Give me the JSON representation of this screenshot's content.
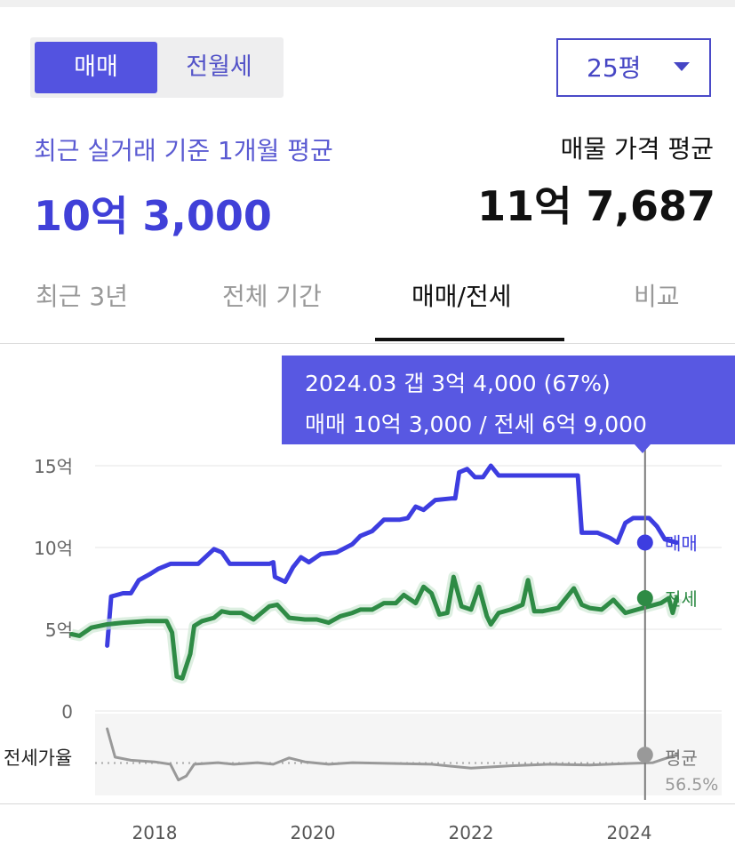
{
  "colors": {
    "accent": "#4a4adf",
    "sale": "#3d3de0",
    "jeonse": "#2e8b45",
    "ratio": "#999999"
  },
  "toggle": {
    "active": "매매",
    "inactive": "전월세"
  },
  "area_select": {
    "value": "25평",
    "icon": "caret-down-icon"
  },
  "recent": {
    "label": "최근 실거래 기준 1개월 평균",
    "value": "10억 3,000"
  },
  "listing": {
    "label": "매물 가격 평균",
    "value": "11억 7,687"
  },
  "tabs": [
    {
      "label": "최근 3년"
    },
    {
      "label": "전체 기간"
    },
    {
      "label": "매매/전세",
      "active": true
    },
    {
      "label": "비교"
    }
  ],
  "tooltip": {
    "line1": "2024.03  갭 3억 4,000 (67%)",
    "line2": "매매 10억 3,000 / 전세 6억 9,000"
  },
  "chart_data": {
    "type": "line",
    "x_ticks": [
      "2018",
      "2020",
      "2022",
      "2024"
    ],
    "y_ticks": [
      "0",
      "5억",
      "10억",
      "15억"
    ],
    "ylim": [
      0,
      15
    ],
    "y_unit": "억",
    "grid": true,
    "marker_x": 2024.2,
    "series": [
      {
        "name": "매매",
        "color": "#3d3de0",
        "points": [
          [
            2017.4,
            4.0
          ],
          [
            2017.45,
            7.0
          ],
          [
            2017.6,
            7.2
          ],
          [
            2017.7,
            7.2
          ],
          [
            2017.8,
            8.0
          ],
          [
            2017.95,
            8.4
          ],
          [
            2018.05,
            8.7
          ],
          [
            2018.2,
            9.0
          ],
          [
            2018.4,
            9.0
          ],
          [
            2018.55,
            9.0
          ],
          [
            2018.75,
            9.9
          ],
          [
            2018.85,
            9.7
          ],
          [
            2018.95,
            9.0
          ],
          [
            2019.2,
            9.0
          ],
          [
            2019.45,
            9.0
          ],
          [
            2019.5,
            9.1
          ],
          [
            2019.52,
            8.2
          ],
          [
            2019.65,
            7.9
          ],
          [
            2019.75,
            8.8
          ],
          [
            2019.85,
            9.4
          ],
          [
            2019.95,
            9.1
          ],
          [
            2020.1,
            9.6
          ],
          [
            2020.3,
            9.7
          ],
          [
            2020.5,
            10.2
          ],
          [
            2020.6,
            10.7
          ],
          [
            2020.75,
            11.0
          ],
          [
            2020.9,
            11.7
          ],
          [
            2021.1,
            11.7
          ],
          [
            2021.2,
            11.8
          ],
          [
            2021.3,
            12.5
          ],
          [
            2021.4,
            12.3
          ],
          [
            2021.55,
            12.9
          ],
          [
            2021.75,
            13.0
          ],
          [
            2021.8,
            13.0
          ],
          [
            2021.85,
            14.6
          ],
          [
            2021.95,
            14.8
          ],
          [
            2022.05,
            14.3
          ],
          [
            2022.15,
            14.3
          ],
          [
            2022.25,
            15.0
          ],
          [
            2022.35,
            14.4
          ],
          [
            2022.5,
            14.4
          ],
          [
            2023.0,
            14.4
          ],
          [
            2023.2,
            14.4
          ],
          [
            2023.35,
            14.4
          ],
          [
            2023.4,
            10.9
          ],
          [
            2023.6,
            10.9
          ],
          [
            2023.75,
            10.6
          ],
          [
            2023.85,
            10.3
          ],
          [
            2023.95,
            11.5
          ],
          [
            2024.05,
            11.8
          ],
          [
            2024.25,
            11.8
          ],
          [
            2024.35,
            11.3
          ],
          [
            2024.45,
            10.5
          ],
          [
            2024.6,
            10.3
          ]
        ]
      },
      {
        "name": "전세",
        "color": "#2e8b45",
        "points": [
          [
            2016.95,
            4.7
          ],
          [
            2017.05,
            4.6
          ],
          [
            2017.2,
            5.1
          ],
          [
            2017.4,
            5.3
          ],
          [
            2017.6,
            5.4
          ],
          [
            2017.9,
            5.5
          ],
          [
            2018.05,
            5.5
          ],
          [
            2018.15,
            5.5
          ],
          [
            2018.22,
            4.8
          ],
          [
            2018.28,
            2.1
          ],
          [
            2018.35,
            2.0
          ],
          [
            2018.45,
            3.5
          ],
          [
            2018.5,
            5.2
          ],
          [
            2018.6,
            5.5
          ],
          [
            2018.75,
            5.7
          ],
          [
            2018.85,
            6.1
          ],
          [
            2018.95,
            6.0
          ],
          [
            2019.1,
            6.0
          ],
          [
            2019.25,
            5.6
          ],
          [
            2019.45,
            6.4
          ],
          [
            2019.55,
            6.5
          ],
          [
            2019.7,
            5.7
          ],
          [
            2019.9,
            5.6
          ],
          [
            2020.05,
            5.6
          ],
          [
            2020.2,
            5.4
          ],
          [
            2020.35,
            5.8
          ],
          [
            2020.5,
            6.0
          ],
          [
            2020.6,
            6.2
          ],
          [
            2020.75,
            6.2
          ],
          [
            2020.9,
            6.6
          ],
          [
            2021.05,
            6.6
          ],
          [
            2021.15,
            7.1
          ],
          [
            2021.3,
            6.6
          ],
          [
            2021.4,
            7.6
          ],
          [
            2021.5,
            7.2
          ],
          [
            2021.6,
            5.9
          ],
          [
            2021.7,
            6.0
          ],
          [
            2021.78,
            8.2
          ],
          [
            2021.88,
            6.4
          ],
          [
            2022.0,
            6.2
          ],
          [
            2022.1,
            7.6
          ],
          [
            2022.2,
            5.8
          ],
          [
            2022.25,
            5.3
          ],
          [
            2022.35,
            6.0
          ],
          [
            2022.5,
            6.2
          ],
          [
            2022.65,
            6.5
          ],
          [
            2022.72,
            8.0
          ],
          [
            2022.8,
            6.1
          ],
          [
            2022.9,
            6.1
          ],
          [
            2023.1,
            6.3
          ],
          [
            2023.3,
            7.5
          ],
          [
            2023.4,
            6.5
          ],
          [
            2023.5,
            6.3
          ],
          [
            2023.65,
            6.2
          ],
          [
            2023.8,
            6.8
          ],
          [
            2023.95,
            6.0
          ],
          [
            2024.1,
            6.2
          ],
          [
            2024.25,
            6.4
          ],
          [
            2024.4,
            6.6
          ],
          [
            2024.5,
            6.9
          ],
          [
            2024.55,
            6.0
          ],
          [
            2024.6,
            6.9
          ]
        ]
      },
      {
        "name": "전세가율",
        "color": "#999999",
        "band_label": "전세가율",
        "avg_label": "평균",
        "avg_value": "56.5%",
        "points": [
          [
            2017.4,
            100
          ],
          [
            2017.5,
            64
          ],
          [
            2017.7,
            60
          ],
          [
            2018.0,
            58
          ],
          [
            2018.2,
            55
          ],
          [
            2018.3,
            35
          ],
          [
            2018.4,
            40
          ],
          [
            2018.5,
            55
          ],
          [
            2018.8,
            57
          ],
          [
            2019.0,
            55
          ],
          [
            2019.3,
            57
          ],
          [
            2019.5,
            55
          ],
          [
            2019.7,
            63
          ],
          [
            2019.9,
            58
          ],
          [
            2020.2,
            55
          ],
          [
            2020.5,
            57
          ],
          [
            2021.0,
            56
          ],
          [
            2021.5,
            55
          ],
          [
            2022.0,
            50
          ],
          [
            2022.5,
            53
          ],
          [
            2023.0,
            55
          ],
          [
            2023.5,
            54
          ],
          [
            2024.0,
            56
          ],
          [
            2024.3,
            57
          ],
          [
            2024.6,
            67
          ]
        ],
        "avg_ratio": 56.5
      }
    ]
  }
}
